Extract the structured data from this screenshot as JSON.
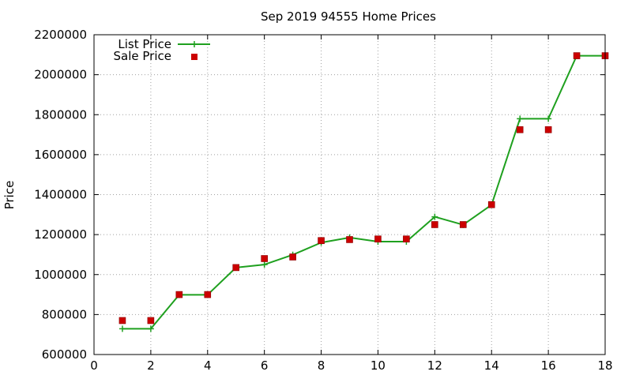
{
  "chart_data": {
    "type": "line",
    "title": "Sep 2019 94555 Home Prices",
    "xlabel": "",
    "ylabel": "Price",
    "xlim": [
      0,
      18
    ],
    "ylim": [
      600000,
      2200000
    ],
    "xticks": [
      "0",
      "2",
      "4",
      "6",
      "8",
      "10",
      "12",
      "14",
      "16",
      "18"
    ],
    "yticks": [
      "600000",
      "800000",
      "1000000",
      "1200000",
      "1400000",
      "1600000",
      "1800000",
      "2000000",
      "2200000"
    ],
    "grid": true,
    "legend_position": "top-left",
    "series": [
      {
        "name": "List Price",
        "style": "line+plus-markers",
        "color": "#1fa01f",
        "x": [
          1,
          2,
          3,
          4,
          5,
          6,
          7,
          8,
          9,
          10,
          11,
          12,
          13,
          14,
          15,
          16,
          17,
          18
        ],
        "y": [
          729000,
          729000,
          899000,
          899000,
          1035000,
          1050000,
          1099000,
          1160000,
          1185000,
          1165000,
          1165000,
          1289000,
          1249000,
          1349000,
          1780000,
          1780000,
          2095000,
          2095000
        ]
      },
      {
        "name": "Sale Price",
        "style": "square-points",
        "color": "#cc0000",
        "x": [
          1,
          2,
          3,
          4,
          5,
          6,
          7,
          8,
          9,
          10,
          11,
          12,
          13,
          14,
          15,
          16,
          17,
          18
        ],
        "y": [
          770000,
          770000,
          900000,
          900000,
          1035000,
          1080000,
          1088000,
          1170000,
          1175000,
          1178000,
          1178000,
          1250000,
          1250000,
          1350000,
          1725000,
          1725000,
          2095000,
          2095000
        ]
      }
    ]
  }
}
